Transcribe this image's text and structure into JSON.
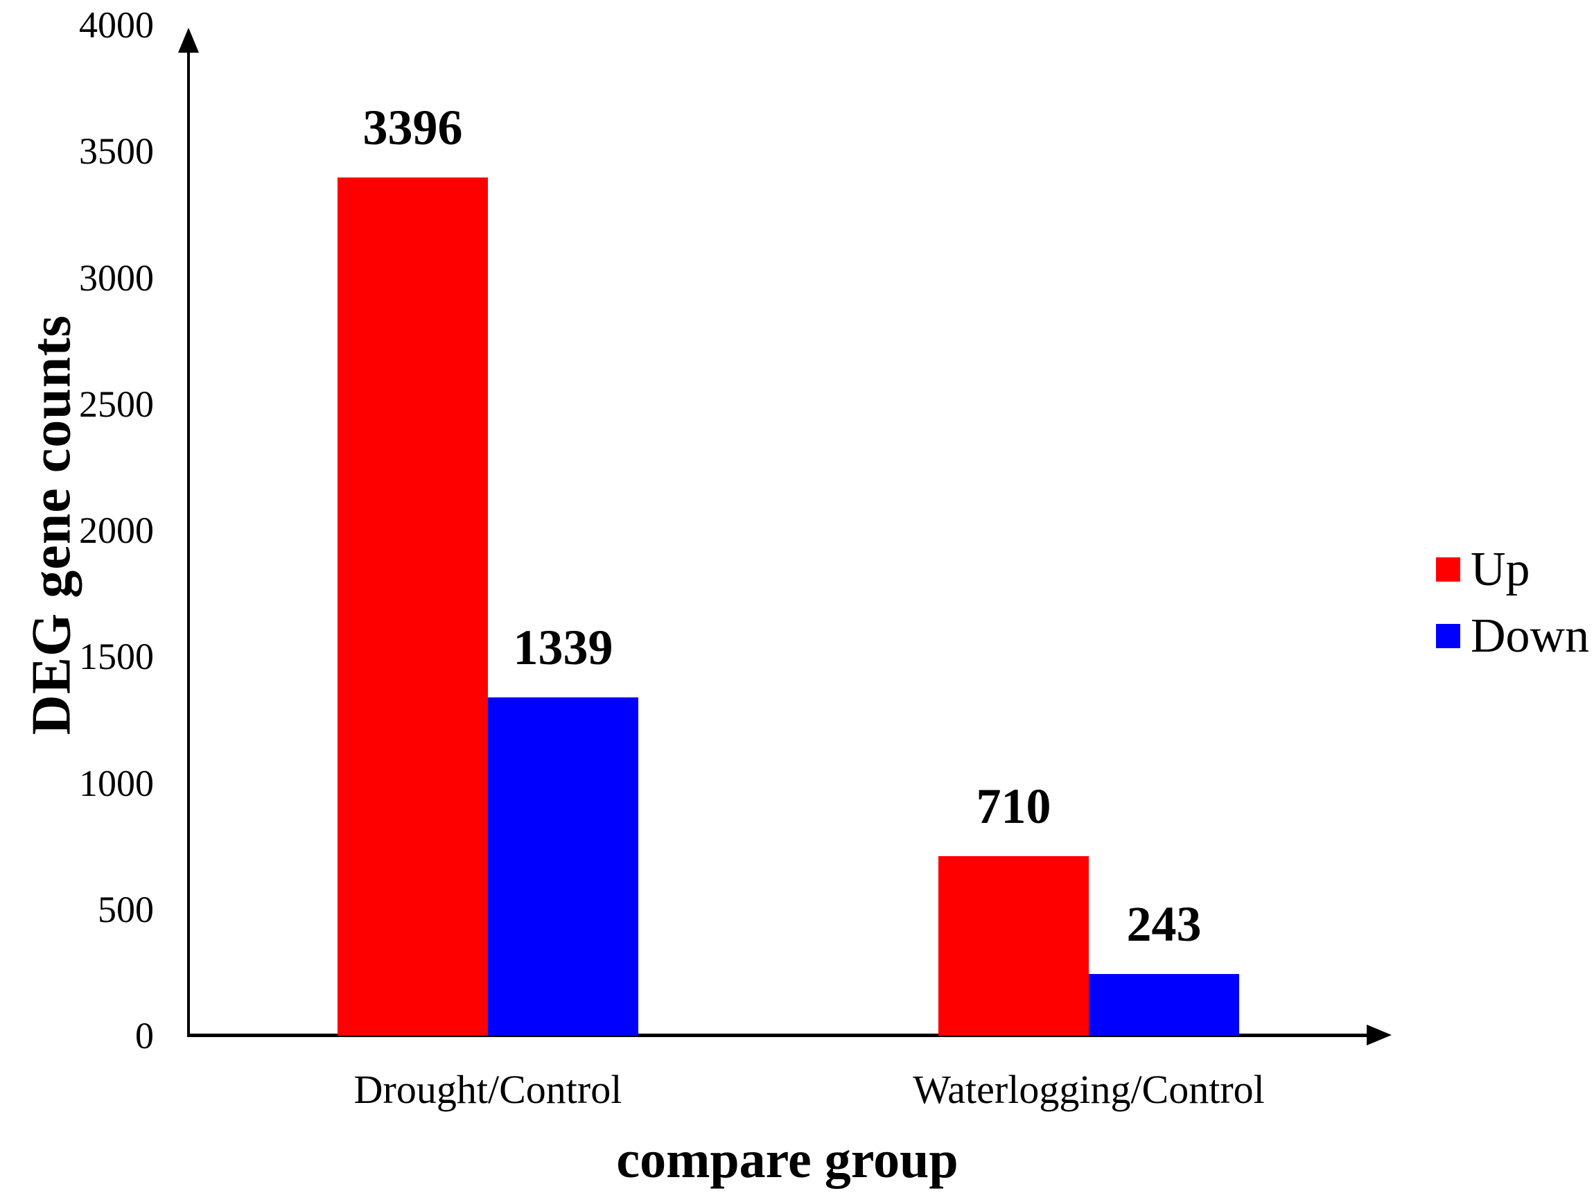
{
  "chart_data": {
    "type": "bar",
    "title": "",
    "categories": [
      "Drought/Control",
      "Waterlogging/Control"
    ],
    "series": [
      {
        "name": "Up",
        "color": "#ff0000",
        "values": [
          3396,
          710
        ]
      },
      {
        "name": "Down",
        "color": "#0000ff",
        "values": [
          1339,
          243
        ]
      }
    ],
    "value_labels": [
      [
        "3396",
        "710"
      ],
      [
        "1339",
        "243"
      ]
    ],
    "xlabel": "compare group",
    "ylabel": "DEG gene counts",
    "ylim": [
      0,
      4000
    ],
    "yticks": [
      0,
      500,
      1000,
      1500,
      2000,
      2500,
      3000,
      3500,
      4000
    ],
    "grid": false,
    "legend_position": "middle-right",
    "axis_color": "#000000",
    "text_color": "#000000",
    "background_color": "#ffffff"
  }
}
